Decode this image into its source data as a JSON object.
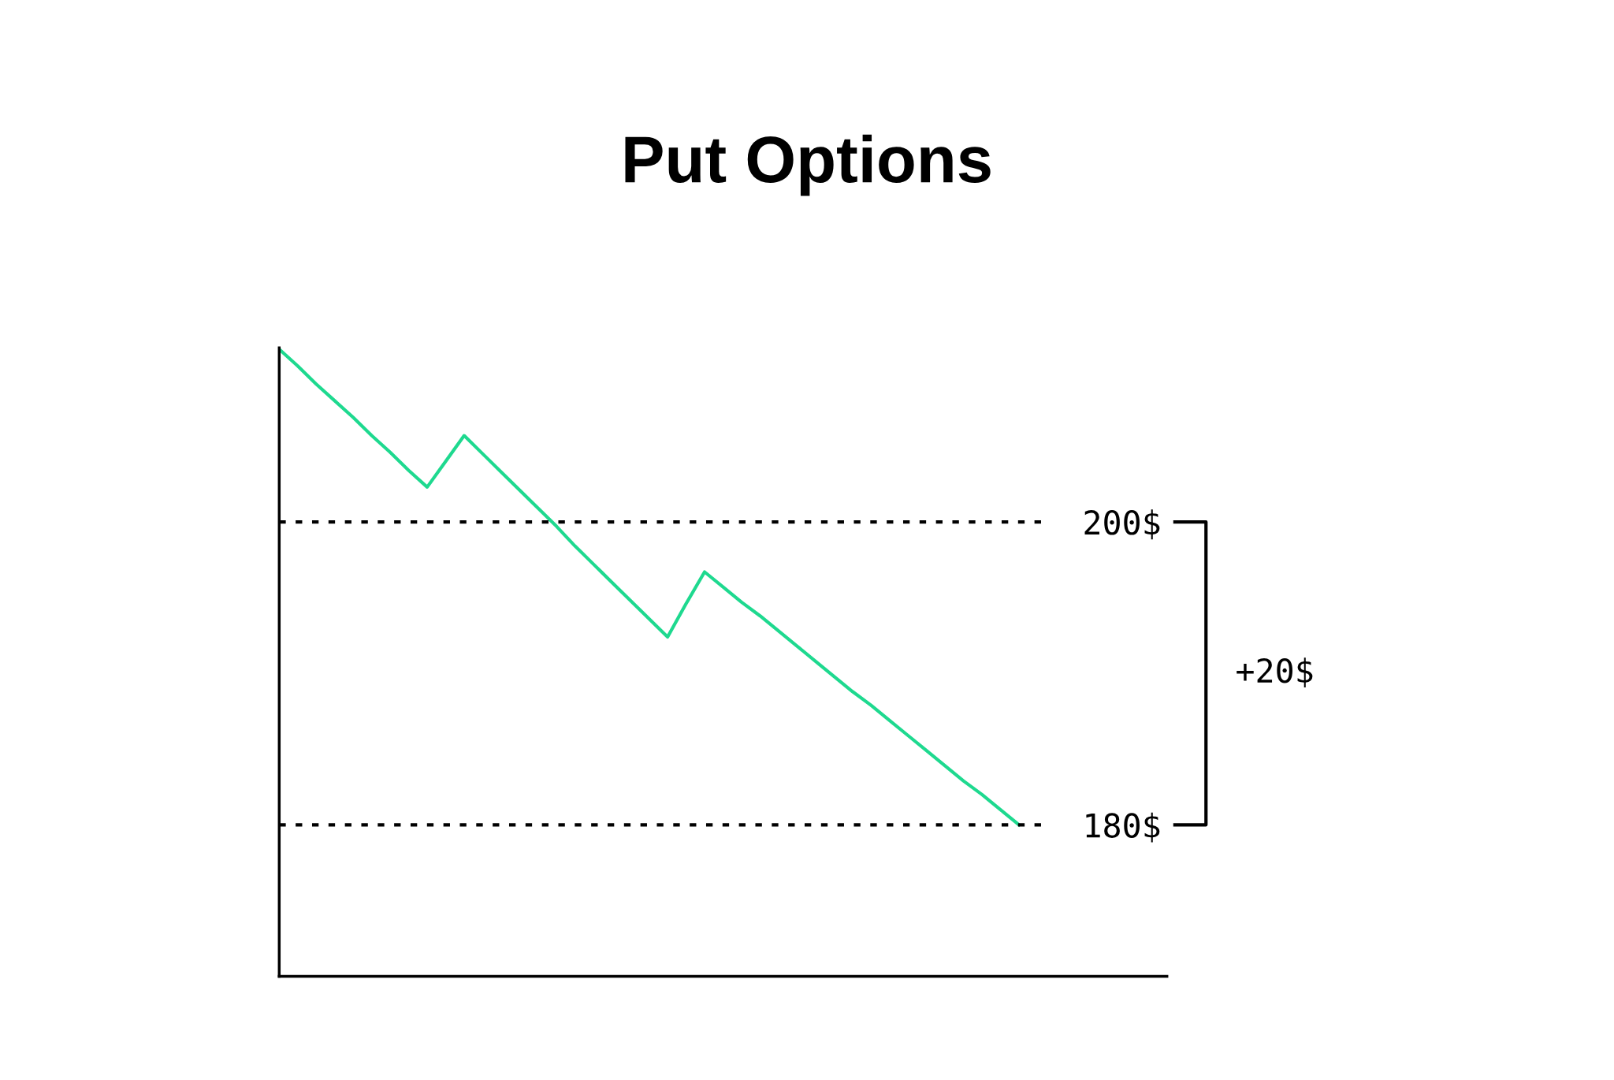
{
  "chart_data": {
    "type": "line",
    "title": "Put Options",
    "categories": [
      null,
      null,
      null,
      null,
      null,
      null,
      null,
      null,
      null,
      null,
      null,
      null,
      null,
      null,
      null,
      null,
      null,
      null,
      null,
      null,
      null,
      null,
      null,
      null,
      null,
      null,
      null,
      null,
      null,
      null,
      null,
      null,
      null,
      null,
      null,
      null,
      null,
      null,
      null,
      null,
      null,
      null,
      null,
      null,
      null,
      null,
      null,
      null,
      null
    ],
    "series": [
      {
        "color": "#1ed98f",
        "values": [
          211.4,
          210.3,
          209.1,
          208.0,
          206.9,
          205.7,
          204.6,
          203.4,
          202.3,
          204.0,
          205.7,
          204.5,
          203.3,
          202.1,
          200.9,
          199.7,
          198.4,
          197.2,
          196.0,
          194.8,
          193.6,
          192.4,
          194.6,
          196.7,
          195.7,
          194.7,
          193.8,
          192.8,
          191.8,
          190.8,
          189.8,
          188.8,
          187.9,
          186.9,
          185.9,
          184.9,
          183.9,
          182.9,
          182.0,
          181.0,
          180.0,
          null,
          null,
          null,
          null,
          null,
          null,
          null,
          null
        ]
      }
    ],
    "ylim": [
      170,
      211.5
    ],
    "yticks": [
      {
        "value": 180,
        "label": "180$"
      },
      {
        "value": 200,
        "label": "200$"
      }
    ],
    "marker": "none",
    "line_style": "solid",
    "ref_lines": [
      {
        "axis": "y",
        "value": 200,
        "color": "#000000",
        "line_style": "dotted"
      },
      {
        "axis": "y",
        "value": 180,
        "color": "#000000",
        "line_style": "dotted"
      }
    ],
    "annotations": [
      "+20$"
    ]
  }
}
